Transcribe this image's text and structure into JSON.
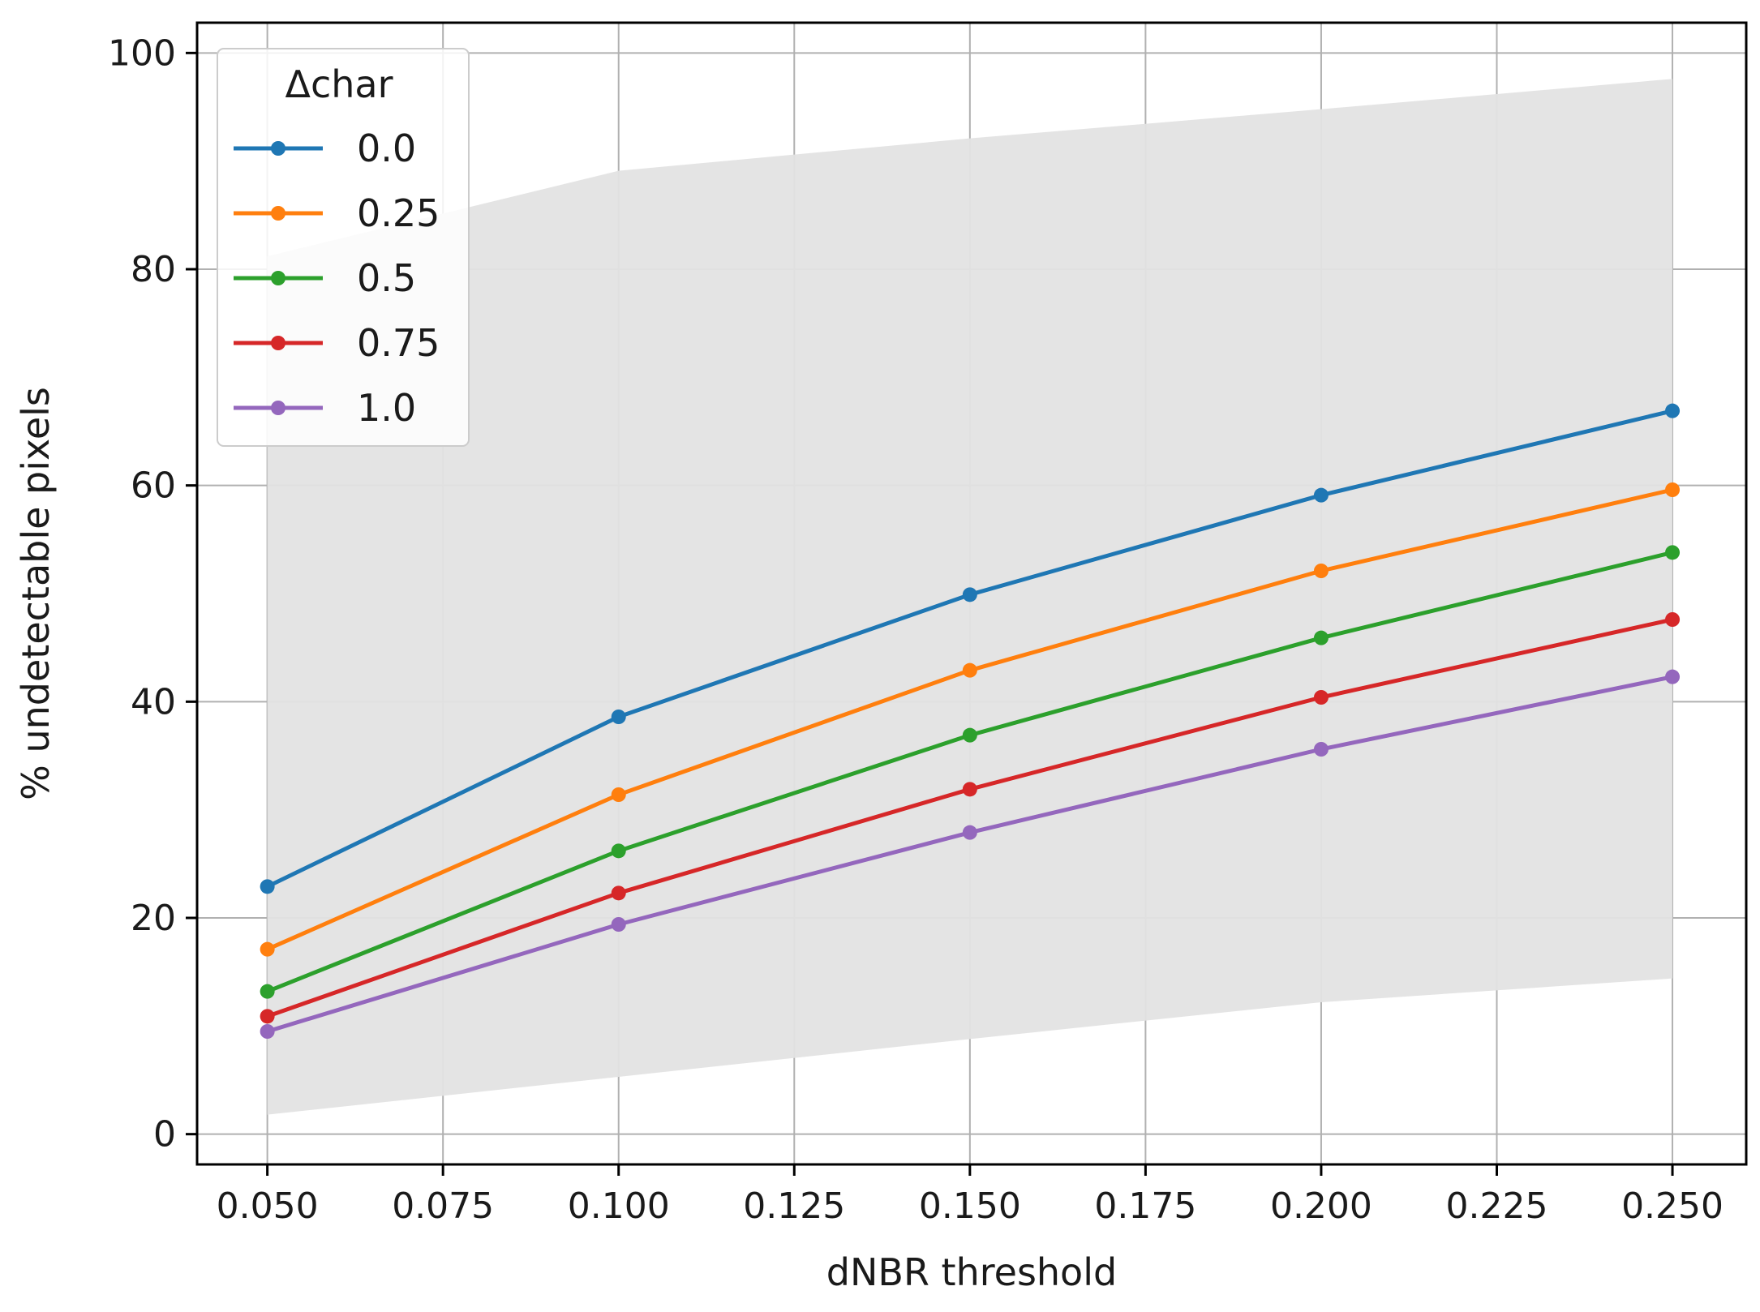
{
  "chart_data": {
    "type": "line",
    "title": "",
    "xlabel": "dNBR threshold",
    "ylabel": "% undetectable pixels",
    "xlim": [
      0.04,
      0.2605
    ],
    "ylim": [
      -2.8,
      102.8
    ],
    "xticks": [
      0.05,
      0.075,
      0.1,
      0.125,
      0.15,
      0.175,
      0.2,
      0.225,
      0.25
    ],
    "xtick_labels": [
      "0.050",
      "0.075",
      "0.100",
      "0.125",
      "0.150",
      "0.175",
      "0.200",
      "0.225",
      "0.250"
    ],
    "yticks": [
      0,
      20,
      40,
      60,
      80,
      100
    ],
    "ytick_labels": [
      "0",
      "20",
      "40",
      "60",
      "80",
      "100"
    ],
    "grid": true,
    "legend": {
      "title": "Δchar",
      "position": "top-left"
    },
    "x": [
      0.05,
      0.1,
      0.15,
      0.2,
      0.25
    ],
    "band": {
      "color": "#e3e3e3",
      "lower": [
        1.8,
        5.3,
        8.8,
        12.2,
        14.4
      ],
      "upper": [
        81.2,
        89.1,
        92.1,
        94.8,
        97.6
      ]
    },
    "series": [
      {
        "name": "0.0",
        "color": "#1f77b4",
        "values": [
          22.9,
          38.6,
          49.9,
          59.1,
          66.9
        ]
      },
      {
        "name": "0.25",
        "color": "#ff7f0e",
        "values": [
          17.1,
          31.4,
          42.9,
          52.1,
          59.6
        ]
      },
      {
        "name": "0.5",
        "color": "#2ca02c",
        "values": [
          13.2,
          26.2,
          36.9,
          45.9,
          53.8
        ]
      },
      {
        "name": "0.75",
        "color": "#d62728",
        "values": [
          10.9,
          22.3,
          31.9,
          40.4,
          47.6
        ]
      },
      {
        "name": "1.0",
        "color": "#9467bd",
        "values": [
          9.5,
          19.4,
          27.9,
          35.6,
          42.3
        ]
      }
    ]
  }
}
